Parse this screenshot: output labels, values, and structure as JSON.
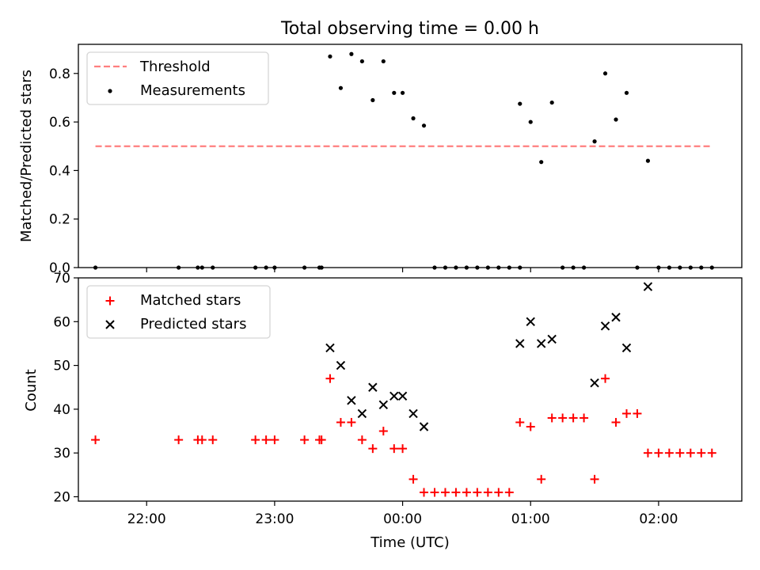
{
  "figure": {
    "title": "Total observing time = 0.00 h"
  },
  "chart_data": [
    {
      "type": "scatter",
      "title": "Total observing time = 0.00 h",
      "xlabel": "",
      "ylabel": "Matched/Predicted stars",
      "ylim": [
        0.0,
        0.92
      ],
      "yticks": [
        "0.0",
        "0.2",
        "0.4",
        "0.6",
        "0.8"
      ],
      "ytick_values": [
        0.0,
        0.2,
        0.4,
        0.6,
        0.8
      ],
      "xlim": [
        "21:28",
        "02:39"
      ],
      "legend_position": "upper left",
      "grid": false,
      "threshold": {
        "name": "Threshold",
        "value": 0.5,
        "x_range": [
          "21:36",
          "02:24"
        ],
        "color": "#ff7f7f",
        "style": "dashed"
      },
      "series": [
        {
          "name": "Measurements",
          "color": "#000000",
          "marker": "dot",
          "points": [
            [
              "21:36",
              0.0
            ],
            [
              "22:15",
              0.0
            ],
            [
              "22:24",
              0.0
            ],
            [
              "22:26",
              0.0
            ],
            [
              "22:31",
              0.0
            ],
            [
              "22:51",
              0.0
            ],
            [
              "22:56",
              0.0
            ],
            [
              "23:00",
              0.0
            ],
            [
              "23:14",
              0.0
            ],
            [
              "23:21",
              0.0
            ],
            [
              "23:22",
              0.0
            ],
            [
              "23:26",
              0.87
            ],
            [
              "23:31",
              0.74
            ],
            [
              "23:36",
              0.88
            ],
            [
              "23:41",
              0.85
            ],
            [
              "23:46",
              0.69
            ],
            [
              "23:51",
              0.85
            ],
            [
              "23:56",
              0.72
            ],
            [
              "00:00",
              0.72
            ],
            [
              "00:05",
              0.615
            ],
            [
              "00:10",
              0.585
            ],
            [
              "00:15",
              0.0
            ],
            [
              "00:20",
              0.0
            ],
            [
              "00:25",
              0.0
            ],
            [
              "00:30",
              0.0
            ],
            [
              "00:35",
              0.0
            ],
            [
              "00:40",
              0.0
            ],
            [
              "00:45",
              0.0
            ],
            [
              "00:50",
              0.0
            ],
            [
              "00:55",
              0.0
            ],
            [
              "00:55",
              0.675
            ],
            [
              "01:00",
              0.6
            ],
            [
              "01:05",
              0.435
            ],
            [
              "01:10",
              0.68
            ],
            [
              "01:15",
              0.0
            ],
            [
              "01:20",
              0.0
            ],
            [
              "01:25",
              0.0
            ],
            [
              "01:30",
              0.52
            ],
            [
              "01:35",
              0.8
            ],
            [
              "01:40",
              0.61
            ],
            [
              "01:45",
              0.72
            ],
            [
              "01:50",
              0.0
            ],
            [
              "01:55",
              0.44
            ],
            [
              "02:00",
              0.0
            ],
            [
              "02:05",
              0.0
            ],
            [
              "02:10",
              0.0
            ],
            [
              "02:15",
              0.0
            ],
            [
              "02:20",
              0.0
            ],
            [
              "02:25",
              0.0
            ]
          ]
        }
      ]
    },
    {
      "type": "scatter",
      "title": "",
      "xlabel": "Time (UTC)",
      "ylabel": "Count",
      "ylim": [
        19,
        70
      ],
      "yticks": [
        "20",
        "30",
        "40",
        "50",
        "60",
        "70"
      ],
      "ytick_values": [
        20,
        30,
        40,
        50,
        60,
        70
      ],
      "xlim": [
        "21:28",
        "02:39"
      ],
      "xticks": [
        "22:00",
        "23:00",
        "00:00",
        "01:00",
        "02:00"
      ],
      "legend_position": "upper left",
      "grid": false,
      "series": [
        {
          "name": "Matched stars",
          "color": "#ff0000",
          "marker": "plus",
          "points": [
            [
              "21:36",
              33
            ],
            [
              "22:15",
              33
            ],
            [
              "22:24",
              33
            ],
            [
              "22:26",
              33
            ],
            [
              "22:31",
              33
            ],
            [
              "22:51",
              33
            ],
            [
              "22:56",
              33
            ],
            [
              "23:00",
              33
            ],
            [
              "23:14",
              33
            ],
            [
              "23:21",
              33
            ],
            [
              "23:22",
              33
            ],
            [
              "23:26",
              47
            ],
            [
              "23:31",
              37
            ],
            [
              "23:36",
              37
            ],
            [
              "23:41",
              33
            ],
            [
              "23:46",
              31
            ],
            [
              "23:51",
              35
            ],
            [
              "23:56",
              31
            ],
            [
              "00:00",
              31
            ],
            [
              "00:05",
              24
            ],
            [
              "00:10",
              21
            ],
            [
              "00:15",
              21
            ],
            [
              "00:20",
              21
            ],
            [
              "00:25",
              21
            ],
            [
              "00:30",
              21
            ],
            [
              "00:35",
              21
            ],
            [
              "00:40",
              21
            ],
            [
              "00:45",
              21
            ],
            [
              "00:50",
              21
            ],
            [
              "00:55",
              37
            ],
            [
              "01:00",
              36
            ],
            [
              "01:05",
              24
            ],
            [
              "01:10",
              38
            ],
            [
              "01:15",
              38
            ],
            [
              "01:20",
              38
            ],
            [
              "01:25",
              38
            ],
            [
              "01:30",
              24
            ],
            [
              "01:35",
              47
            ],
            [
              "01:40",
              37
            ],
            [
              "01:45",
              39
            ],
            [
              "01:50",
              39
            ],
            [
              "01:55",
              30
            ],
            [
              "02:00",
              30
            ],
            [
              "02:05",
              30
            ],
            [
              "02:10",
              30
            ],
            [
              "02:15",
              30
            ],
            [
              "02:20",
              30
            ],
            [
              "02:25",
              30
            ]
          ]
        },
        {
          "name": "Predicted stars",
          "color": "#000000",
          "marker": "x",
          "points": [
            [
              "23:26",
              54
            ],
            [
              "23:31",
              50
            ],
            [
              "23:36",
              42
            ],
            [
              "23:41",
              39
            ],
            [
              "23:46",
              45
            ],
            [
              "23:51",
              41
            ],
            [
              "23:56",
              43
            ],
            [
              "00:00",
              43
            ],
            [
              "00:05",
              39
            ],
            [
              "00:10",
              36
            ],
            [
              "00:55",
              55
            ],
            [
              "01:00",
              60
            ],
            [
              "01:05",
              55
            ],
            [
              "01:10",
              56
            ],
            [
              "01:30",
              46
            ],
            [
              "01:35",
              59
            ],
            [
              "01:40",
              61
            ],
            [
              "01:45",
              54
            ],
            [
              "01:55",
              68
            ]
          ]
        }
      ]
    }
  ]
}
